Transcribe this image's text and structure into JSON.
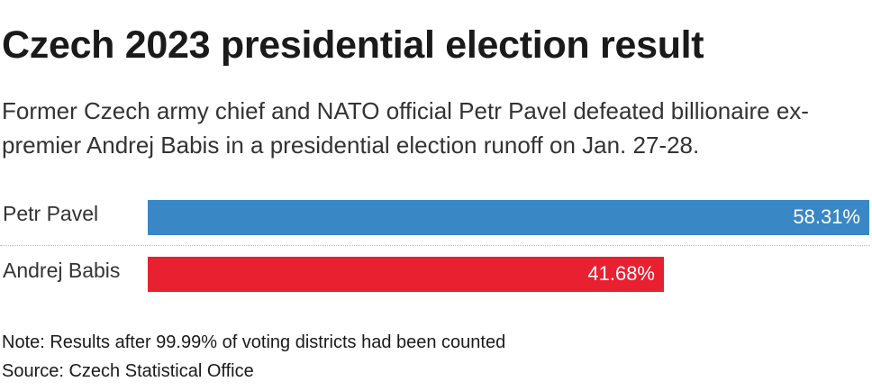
{
  "header": {
    "title": "Czech 2023 presidential election result",
    "subtitle": "Former Czech army chief and NATO official Petr Pavel defeated billionaire ex-premier Andrej Babis in a presidential election runoff on Jan. 27-28."
  },
  "footer": {
    "note": "Note: Results after 99.99% of voting districts had been counted",
    "source": "Source: Czech Statistical Office"
  },
  "chart_data": {
    "type": "bar",
    "orientation": "horizontal",
    "categories": [
      "Petr Pavel",
      "Andrej Babis"
    ],
    "values": [
      58.31,
      41.68
    ],
    "value_labels": [
      "58.31%",
      "41.68%"
    ],
    "colors": [
      "#3a87c6",
      "#e8202f"
    ],
    "title": "Czech 2023 presidential election result",
    "xlabel": "",
    "ylabel": "",
    "xlim": [
      0,
      58.31
    ],
    "grid": false,
    "legend": "none"
  }
}
